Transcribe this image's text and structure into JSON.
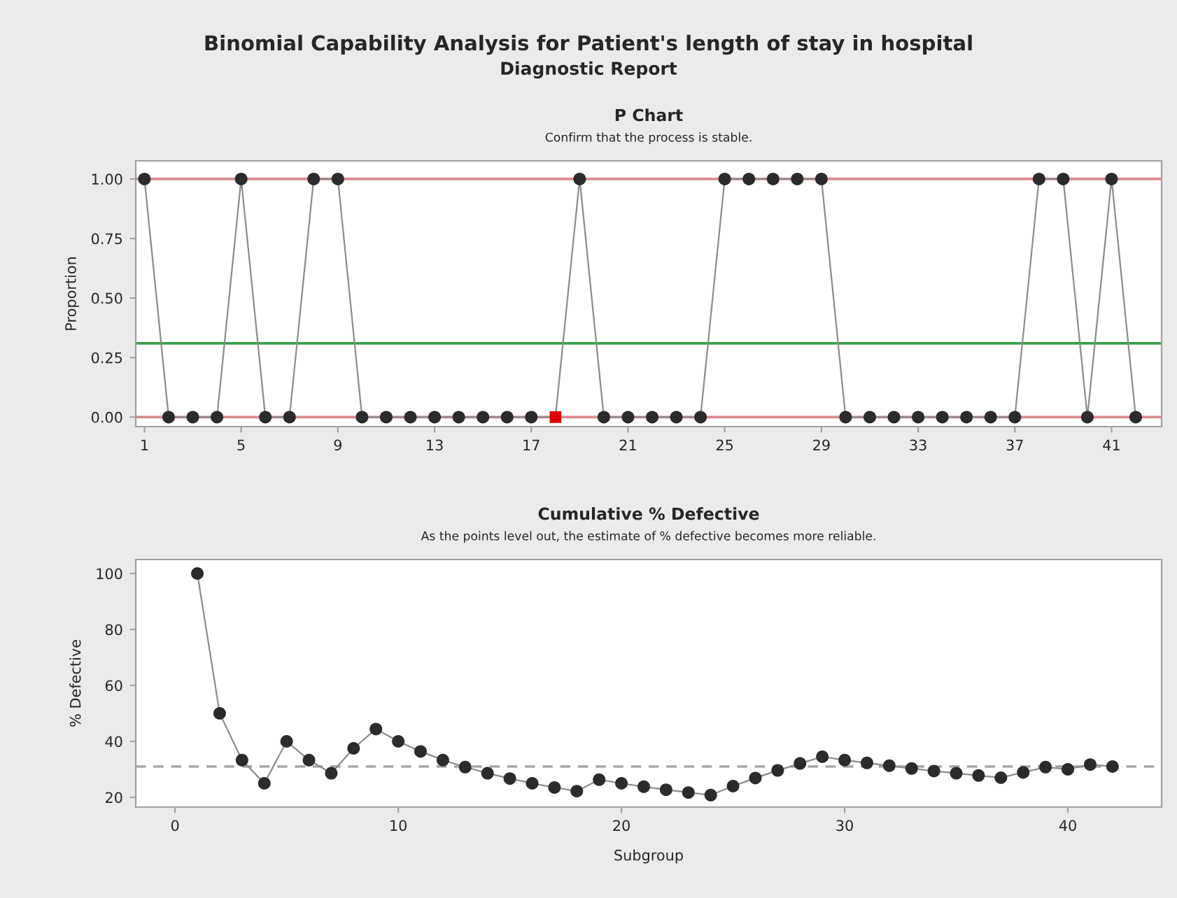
{
  "chart_data": [
    {
      "type": "line",
      "title": "P Chart",
      "subtitle": "Confirm that the process is stable.",
      "ylabel": "Proportion",
      "x": [
        1,
        2,
        3,
        4,
        5,
        6,
        7,
        8,
        9,
        10,
        11,
        12,
        13,
        14,
        15,
        16,
        17,
        18,
        19,
        20,
        21,
        22,
        23,
        24,
        25,
        26,
        27,
        28,
        29,
        30,
        31,
        32,
        33,
        34,
        35,
        36,
        37,
        38,
        39,
        40,
        41,
        42
      ],
      "series": [
        {
          "type": "line",
          "color": "#8c8c8c",
          "marker": "none",
          "values": [
            1,
            0,
            0,
            0,
            1,
            0,
            0,
            1,
            1,
            0,
            0,
            0,
            0,
            0,
            0,
            0,
            0,
            0,
            1,
            0,
            0,
            0,
            0,
            0,
            1,
            1,
            1,
            1,
            1,
            0,
            0,
            0,
            0,
            0,
            0,
            0,
            0,
            1,
            1,
            0,
            1,
            0
          ]
        },
        {
          "type": "scatter",
          "color": "#2b2b2b",
          "marker": "circle",
          "x": [
            1,
            2,
            3,
            4,
            5,
            6,
            7,
            8,
            9,
            10,
            11,
            12,
            13,
            14,
            15,
            16,
            17,
            19,
            20,
            21,
            22,
            23,
            24,
            25,
            26,
            27,
            28,
            29,
            30,
            31,
            32,
            33,
            34,
            35,
            36,
            37,
            38,
            39,
            40,
            41,
            42
          ],
          "values": [
            1,
            0,
            0,
            0,
            1,
            0,
            0,
            1,
            1,
            0,
            0,
            0,
            0,
            0,
            0,
            0,
            0,
            1,
            0,
            0,
            0,
            0,
            0,
            1,
            1,
            1,
            1,
            1,
            0,
            0,
            0,
            0,
            0,
            0,
            0,
            0,
            1,
            1,
            0,
            1,
            0
          ]
        },
        {
          "type": "scatter",
          "color": "#e00000",
          "marker": "square",
          "x": [
            18
          ],
          "values": [
            0
          ]
        }
      ],
      "ref_lines": [
        {
          "axis": "y",
          "value": 1.0,
          "color": "#d98a8e",
          "line_style": "solid"
        },
        {
          "axis": "y",
          "value": 0.0,
          "color": "#d98a8e",
          "line_style": "solid"
        },
        {
          "axis": "y",
          "value": 0.31,
          "color": "#3aa048",
          "line_style": "solid"
        }
      ],
      "xlim": [
        0.64,
        43.07
      ],
      "xticks": [
        1,
        5,
        9,
        13,
        17,
        21,
        25,
        29,
        33,
        37,
        41
      ],
      "ylim": [
        -0.04,
        1.076
      ],
      "yticks": [
        {
          "value": 0,
          "label": "0.00"
        },
        {
          "value": 0.25,
          "label": "0.25"
        },
        {
          "value": 0.5,
          "label": "0.50"
        },
        {
          "value": 0.75,
          "label": "0.75"
        },
        {
          "value": 1,
          "label": "1.00"
        }
      ],
      "grid": false,
      "legend": false,
      "annotations": [
        "Binomial Capability Analysis for Patient's length of stay in hospital",
        "Diagnostic Report"
      ]
    },
    {
      "type": "line",
      "title": "Cumulative % Defective",
      "subtitle": "As the points level out, the estimate of % defective becomes more reliable.",
      "xlabel": "Subgroup",
      "ylabel": "% Defective",
      "x": [
        1,
        2,
        3,
        4,
        5,
        6,
        7,
        8,
        9,
        10,
        11,
        12,
        13,
        14,
        15,
        16,
        17,
        18,
        19,
        20,
        21,
        22,
        23,
        24,
        25,
        26,
        27,
        28,
        29,
        30,
        31,
        32,
        33,
        34,
        35,
        36,
        37,
        38,
        39,
        40,
        41,
        42
      ],
      "series": [
        {
          "type": "line",
          "color": "#8c8c8c",
          "marker": "none",
          "values": [
            100,
            50,
            33.3,
            25,
            40,
            33.3,
            28.6,
            37.5,
            44.4,
            40,
            36.4,
            33.3,
            30.8,
            28.6,
            26.7,
            25,
            23.5,
            22.2,
            26.3,
            25,
            23.8,
            22.7,
            21.7,
            20.8,
            24,
            26.9,
            29.6,
            32.1,
            34.5,
            33.3,
            32.3,
            31.3,
            30.3,
            29.4,
            28.6,
            27.8,
            27,
            28.9,
            30.8,
            30,
            31.7,
            31
          ]
        },
        {
          "type": "scatter",
          "color": "#2b2b2b",
          "marker": "circle",
          "values": [
            100,
            50,
            33.3,
            25,
            40,
            33.3,
            28.6,
            37.5,
            44.4,
            40,
            36.4,
            33.3,
            30.8,
            28.6,
            26.7,
            25,
            23.5,
            22.2,
            26.3,
            25,
            23.8,
            22.7,
            21.7,
            20.8,
            24,
            26.9,
            29.6,
            32.1,
            34.5,
            33.3,
            32.3,
            31.3,
            30.3,
            29.4,
            28.6,
            27.8,
            27,
            28.9,
            30.8,
            30,
            31.7,
            31
          ]
        }
      ],
      "ref_lines": [
        {
          "axis": "y",
          "value": 31,
          "color": "#a6a6a6",
          "line_style": "dashed"
        }
      ],
      "xlim": [
        -1.76,
        44.2
      ],
      "xticks": [
        0,
        10,
        20,
        30,
        40
      ],
      "ylim": [
        16.5,
        105
      ],
      "yticks": [
        20,
        40,
        60,
        80,
        100
      ],
      "grid": false,
      "legend": false
    }
  ]
}
